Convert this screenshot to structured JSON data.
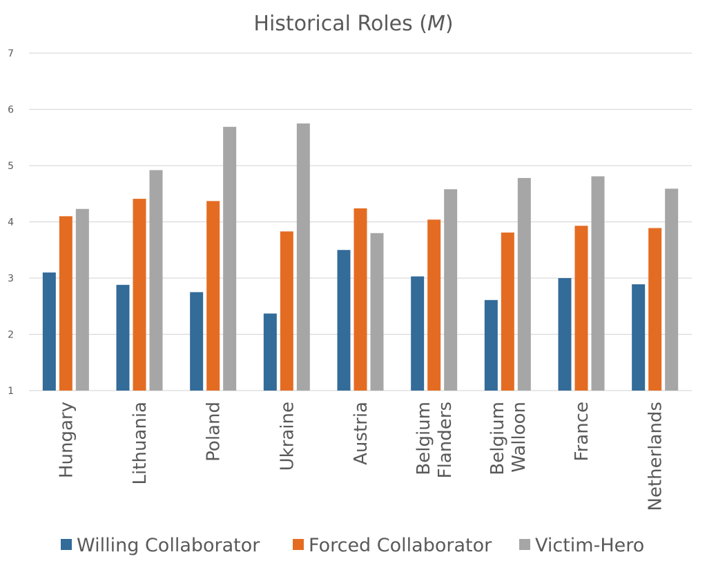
{
  "chart_data": {
    "type": "bar",
    "title": "Historical Roles (",
    "title_italic": "M",
    "title_close": ")",
    "categories": [
      [
        "Hungary"
      ],
      [
        "Lithuania"
      ],
      [
        "Poland"
      ],
      [
        "Ukraine"
      ],
      [
        "Austria"
      ],
      [
        "Belgium",
        "Flanders"
      ],
      [
        "Belgium",
        "Walloon"
      ],
      [
        "France"
      ],
      [
        "Netherlands"
      ]
    ],
    "series": [
      {
        "name": "Willing Collaborator",
        "color": "#336b99",
        "values": [
          3.1,
          2.88,
          2.75,
          2.37,
          3.5,
          3.03,
          2.61,
          3.0,
          2.89
        ]
      },
      {
        "name": "Forced Collaborator",
        "color": "#e46c22",
        "values": [
          4.1,
          4.41,
          4.37,
          3.83,
          4.24,
          4.04,
          3.81,
          3.93,
          3.89
        ]
      },
      {
        "name": "Victim-Hero",
        "color": "#a6a6a6",
        "values": [
          4.23,
          4.92,
          5.69,
          5.75,
          3.8,
          4.58,
          4.78,
          4.81,
          4.59
        ]
      }
    ],
    "yticks": [
      "1",
      "2",
      "3",
      "4",
      "5",
      "6",
      "7"
    ],
    "ylim": [
      1,
      7
    ],
    "grid": true,
    "legend": "bottom"
  }
}
